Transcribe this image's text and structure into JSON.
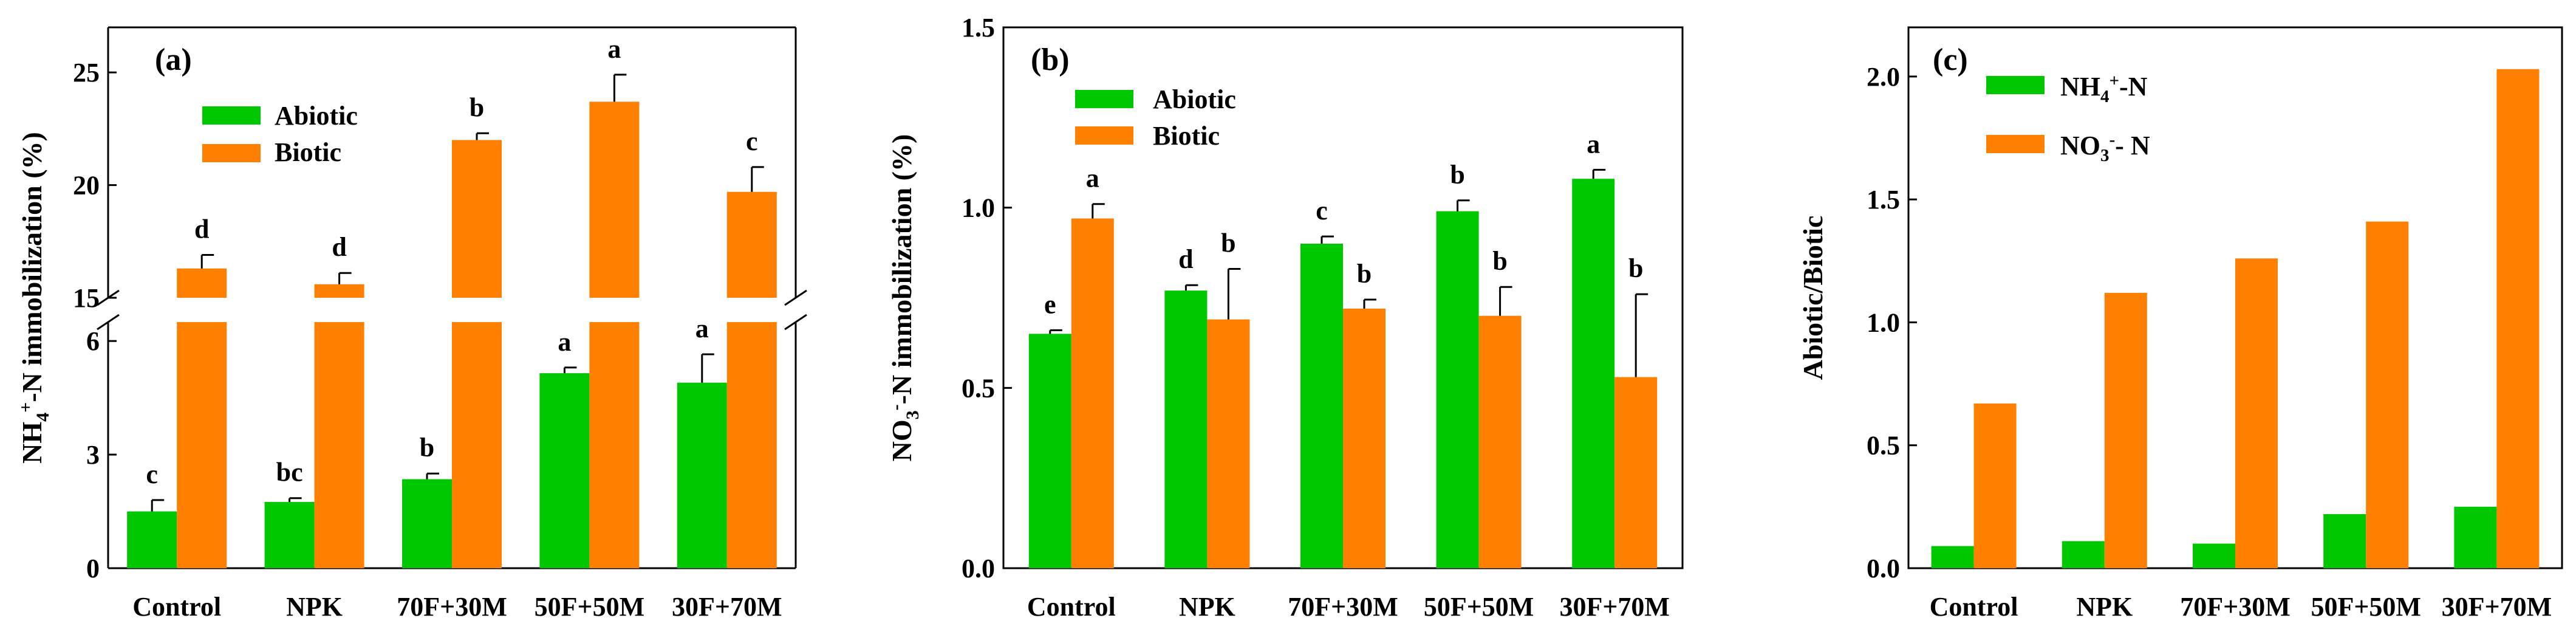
{
  "colors": {
    "abiotic": "#00c800",
    "biotic": "#ff8000",
    "axis": "#000000"
  },
  "chart_data": [
    {
      "type": "bar",
      "panel_label": "(a)",
      "ylabel": "NH4+-N immobilization (%)",
      "ylabel_parts": {
        "base": "NH",
        "sub": "4",
        "sup": "+",
        "rest": "-N immobilization (%)"
      },
      "categories": [
        "Control",
        "NPK",
        "70F+30M",
        "50F+50M",
        "30F+70M"
      ],
      "axis_break": {
        "lower": [
          0,
          6.5
        ],
        "upper": [
          15,
          27
        ],
        "lower_ticks": [
          "0",
          "3",
          "6"
        ],
        "upper_ticks": [
          "15",
          "20",
          "25"
        ]
      },
      "series": [
        {
          "name": "Abiotic",
          "values": [
            1.5,
            1.75,
            2.35,
            5.15,
            4.9
          ],
          "errors": [
            0.3,
            0.1,
            0.15,
            0.15,
            0.75
          ],
          "letters": [
            "c",
            "bc",
            "b",
            "a",
            "a"
          ]
        },
        {
          "name": "Biotic",
          "values": [
            16.3,
            15.6,
            22.0,
            23.7,
            19.7
          ],
          "errors": [
            0.6,
            0.5,
            0.3,
            1.2,
            1.1
          ],
          "letters": [
            "d",
            "d",
            "b",
            "a",
            "c"
          ]
        }
      ],
      "legend": [
        "Abiotic",
        "Biotic"
      ]
    },
    {
      "type": "bar",
      "panel_label": "(b)",
      "ylabel": "NO3--N immobilization (%)",
      "ylabel_parts": {
        "base": "NO",
        "sub": "3",
        "sup": "-",
        "rest": "-N immobilization (%)"
      },
      "categories": [
        "Control",
        "NPK",
        "70F+30M",
        "50F+50M",
        "30F+70M"
      ],
      "ylim": [
        0,
        1.5
      ],
      "yticks": [
        "0.0",
        "0.5",
        "1.0",
        "1.5"
      ],
      "series": [
        {
          "name": "Abiotic",
          "values": [
            0.65,
            0.77,
            0.9,
            0.99,
            1.08
          ],
          "errors": [
            0.01,
            0.015,
            0.02,
            0.03,
            0.025
          ],
          "letters": [
            "e",
            "d",
            "c",
            "b",
            "a"
          ]
        },
        {
          "name": "Biotic",
          "values": [
            0.97,
            0.69,
            0.72,
            0.7,
            0.53
          ],
          "errors": [
            0.04,
            0.14,
            0.025,
            0.08,
            0.23
          ],
          "letters": [
            "a",
            "b",
            "b",
            "b",
            "b"
          ]
        }
      ],
      "legend": [
        "Abiotic",
        "Biotic"
      ]
    },
    {
      "type": "bar",
      "panel_label": "(c)",
      "ylabel": "Abiotic/Biotic",
      "categories": [
        "Control",
        "NPK",
        "70F+30M",
        "50F+50M",
        "30F+70M"
      ],
      "ylim": [
        0,
        2.2
      ],
      "yticks": [
        "0.0",
        "0.5",
        "1.0",
        "1.5",
        "2.0"
      ],
      "series": [
        {
          "name": "NH4+-N",
          "values": [
            0.09,
            0.11,
            0.1,
            0.22,
            0.25
          ]
        },
        {
          "name": "NO3--N",
          "values": [
            0.67,
            1.12,
            1.26,
            1.41,
            2.03
          ]
        }
      ],
      "legend_parts": [
        {
          "base": "NH",
          "sub": "4",
          "sup": "+",
          "rest": "-N"
        },
        {
          "base": "NO",
          "sub": "3",
          "sup": "-",
          "rest": "- N"
        }
      ]
    }
  ]
}
